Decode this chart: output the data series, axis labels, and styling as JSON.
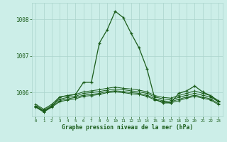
{
  "title": "Graphe pression niveau de la mer (hPa)",
  "yticks": [
    1006,
    1007,
    1008
  ],
  "ylim": [
    1005.35,
    1008.45
  ],
  "xlim": [
    -0.5,
    23.5
  ],
  "background_color": "#cceee8",
  "grid_color": "#aad4cc",
  "line_color": "#1a5c1a",
  "series": [
    [
      1005.62,
      1005.48,
      1005.62,
      1005.88,
      1005.92,
      1005.95,
      1006.28,
      1006.28,
      1007.35,
      1007.72,
      1008.22,
      1008.05,
      1007.62,
      1007.22,
      1006.65,
      1005.82,
      1005.72,
      1005.72,
      1005.98,
      1006.05,
      1006.18,
      1006.02,
      1005.92,
      1005.75
    ],
    [
      1005.68,
      1005.55,
      1005.68,
      1005.88,
      1005.92,
      1005.95,
      1006.02,
      1006.05,
      1006.08,
      1006.12,
      1006.15,
      1006.12,
      1006.1,
      1006.07,
      1006.02,
      1005.92,
      1005.87,
      1005.85,
      1005.92,
      1005.98,
      1006.05,
      1005.98,
      1005.92,
      1005.78
    ],
    [
      1005.65,
      1005.52,
      1005.65,
      1005.82,
      1005.87,
      1005.9,
      1005.98,
      1006.0,
      1006.03,
      1006.07,
      1006.1,
      1006.08,
      1006.05,
      1006.02,
      1005.98,
      1005.88,
      1005.83,
      1005.8,
      1005.87,
      1005.93,
      1005.98,
      1005.93,
      1005.88,
      1005.75
    ],
    [
      1005.62,
      1005.5,
      1005.62,
      1005.78,
      1005.83,
      1005.87,
      1005.93,
      1005.95,
      1005.98,
      1006.03,
      1006.05,
      1006.03,
      1006.0,
      1005.98,
      1005.93,
      1005.83,
      1005.78,
      1005.75,
      1005.82,
      1005.88,
      1005.93,
      1005.88,
      1005.83,
      1005.7
    ],
    [
      1005.6,
      1005.47,
      1005.6,
      1005.75,
      1005.8,
      1005.83,
      1005.9,
      1005.92,
      1005.95,
      1006.0,
      1006.02,
      1006.0,
      1005.97,
      1005.95,
      1005.9,
      1005.8,
      1005.75,
      1005.72,
      1005.78,
      1005.85,
      1005.9,
      1005.85,
      1005.8,
      1005.67
    ]
  ]
}
